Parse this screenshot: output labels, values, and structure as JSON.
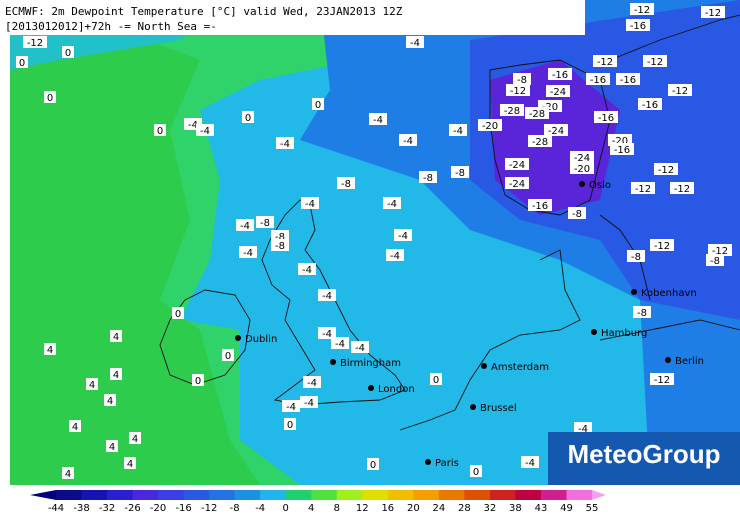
{
  "header": {
    "line1": "ECMWF: 2m Dewpoint Temperature [°C] valid Wed, 23JAN2013 12Z",
    "line2": "[2013012012]+72h -= North Sea =-"
  },
  "logo": "MeteoGroup",
  "cities": [
    "Oslo",
    "Kobenhavn",
    "Hamburg",
    "Berlin",
    "Dublin",
    "Birmingham",
    "London",
    "Amsterdam",
    "Brussel",
    "Paris"
  ],
  "labels": [
    -12,
    0,
    0,
    -4,
    0,
    0,
    -4,
    -4,
    0,
    0,
    -4,
    -4,
    -4,
    -4,
    -8,
    -8,
    -8,
    -20,
    -8,
    -12,
    -16,
    -12,
    -12,
    -16,
    -16,
    -12,
    -16,
    -12,
    -12,
    -16,
    -24,
    -20,
    -28,
    -28,
    -24,
    -16,
    -28,
    -20,
    -16,
    -24,
    -20,
    -24,
    -24,
    -16,
    -8,
    -12,
    -12,
    -12,
    -12,
    -8,
    -12,
    -8,
    -8,
    -12,
    -4,
    -4,
    -4,
    -8,
    -8,
    -8,
    -4,
    -4,
    -4,
    -4,
    -4,
    0,
    -4,
    -4,
    -4,
    0,
    4,
    4,
    0,
    -4,
    -4,
    -4,
    0,
    4,
    4,
    4,
    4,
    4,
    4,
    0,
    4,
    4,
    0,
    0,
    -4,
    -4
  ],
  "colorbar": {
    "ticks": [
      -44,
      -38,
      -32,
      -26,
      -20,
      -16,
      -12,
      -8,
      -4,
      0,
      4,
      8,
      12,
      16,
      20,
      24,
      28,
      32,
      38,
      43,
      49,
      55
    ],
    "colors": [
      "#0a0a8c",
      "#1414b4",
      "#2a1ed4",
      "#4a28e0",
      "#3a3ee8",
      "#2c58e8",
      "#2472e6",
      "#1e90e4",
      "#22b4ea",
      "#20d070",
      "#50e040",
      "#a0f020",
      "#e0e000",
      "#f0c000",
      "#f0a000",
      "#e87800",
      "#e05000",
      "#d02020",
      "#c00040",
      "#d02090",
      "#f070e0"
    ],
    "under": "#000080",
    "over": "#f8a0f0"
  }
}
